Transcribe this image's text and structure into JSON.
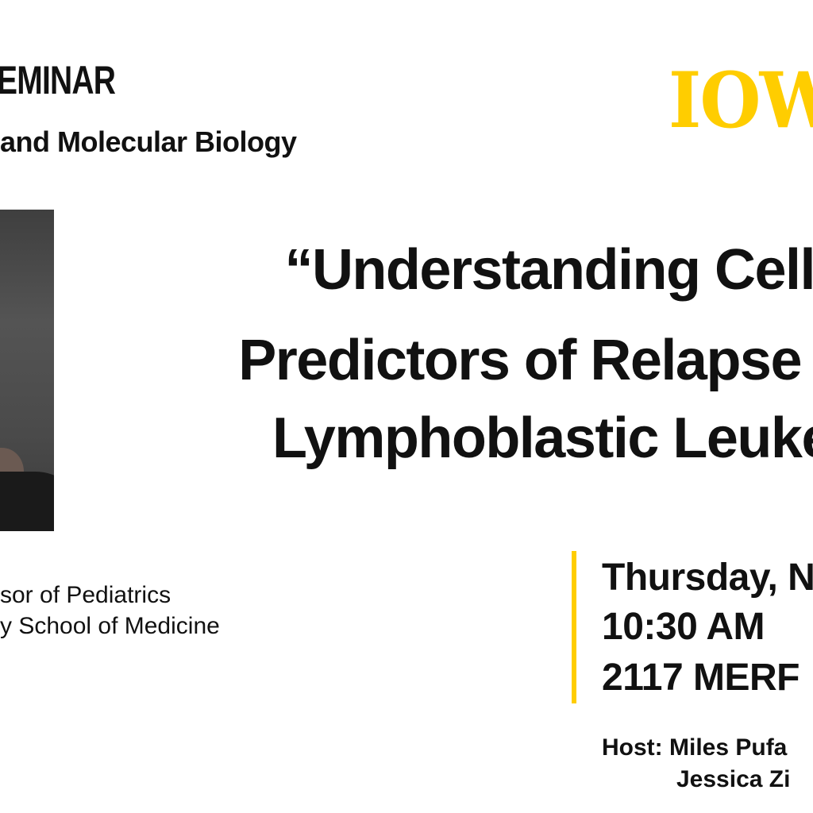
{
  "header": {
    "seminar_label": "EMINAR",
    "department": "and Molecular Biology",
    "logo_text": "IOW",
    "logo_color": "#FFCD00"
  },
  "talk": {
    "title_lines": [
      "“Understanding Cell",
      "Predictors of Relapse o",
      "Lymphoblastic Leuke"
    ]
  },
  "speaker": {
    "affiliation_lines": [
      "sor of Pediatrics",
      "y School of Medicine"
    ]
  },
  "event": {
    "date": "Thursday, N",
    "time": "10:30 AM",
    "location": "2117 MERF",
    "accent_color": "#FFCD00"
  },
  "host": {
    "line1": "Host: Miles Pufa",
    "line2": "Jessica Zi"
  }
}
